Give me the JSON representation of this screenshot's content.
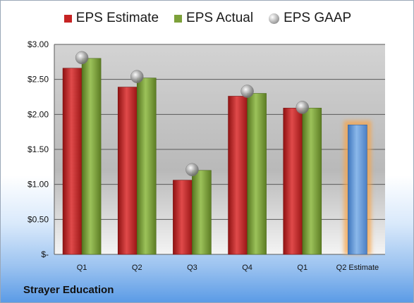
{
  "chart_data": {
    "type": "bar",
    "title": "Strayer Education",
    "categories": [
      "Q1",
      "Q2",
      "Q3",
      "Q4",
      "Q1",
      "Q2 Estimate"
    ],
    "series": [
      {
        "name": "EPS Estimate",
        "kind": "bar",
        "color": "#c62323",
        "values": [
          2.66,
          2.39,
          1.06,
          2.26,
          2.09,
          null
        ]
      },
      {
        "name": "EPS Actual",
        "kind": "bar",
        "color": "#7da13a",
        "values": [
          2.8,
          2.52,
          1.2,
          2.3,
          2.09,
          null
        ]
      },
      {
        "name": "EPS GAAP",
        "kind": "marker",
        "color": "#a8a8a8",
        "values": [
          2.81,
          2.54,
          1.21,
          2.33,
          2.1,
          null
        ]
      },
      {
        "name": "",
        "kind": "bar",
        "color": "#6a9fd8",
        "highlight": true,
        "values": [
          null,
          null,
          null,
          null,
          null,
          1.85
        ]
      }
    ],
    "yticks": [
      "$3.00",
      "$2.50",
      "$2.00",
      "$1.50",
      "$1.00",
      "$0.50",
      "$-"
    ],
    "ytick_values": [
      3.0,
      2.5,
      2.0,
      1.5,
      1.0,
      0.5,
      0
    ],
    "ylim": [
      0,
      3.0
    ],
    "grid": true,
    "legend_position": "top"
  }
}
